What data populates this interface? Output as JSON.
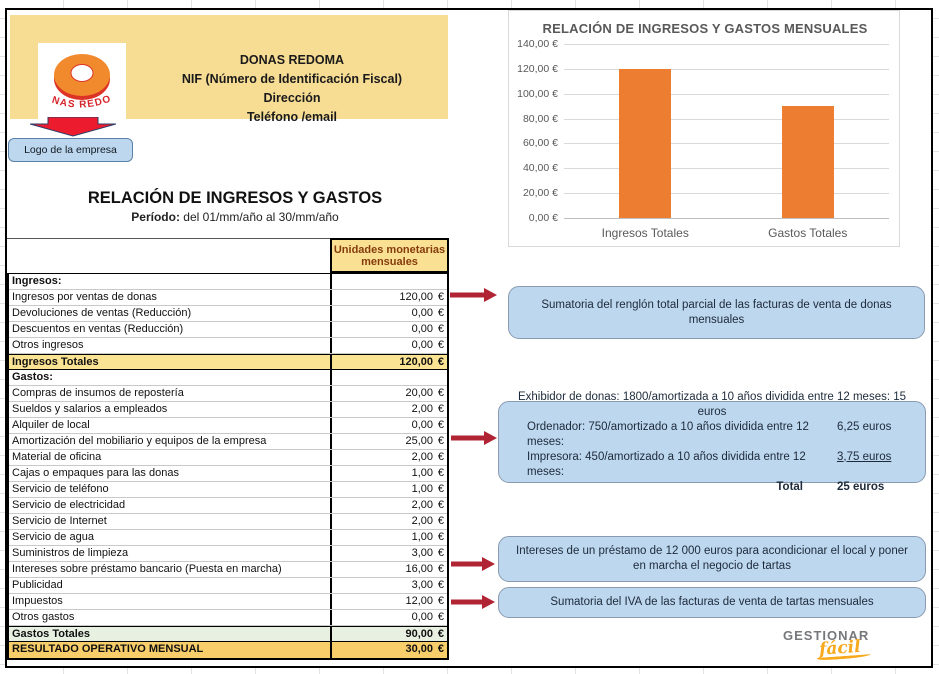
{
  "company": {
    "name": "DONAS REDOMA",
    "nif": "NIF (Número de Identificación Fiscal)",
    "address": "Dirección",
    "contact": "Teléfono /email"
  },
  "logo": {
    "brand": "DONAS REDOMA",
    "caption": "Logo de la empresa"
  },
  "statement": {
    "title": "RELACIÓN DE INGRESOS Y GASTOS",
    "period_label": "Período:",
    "period_value": "del  01/mm/año  al  30/mm/año"
  },
  "table": {
    "value_header": "Unidades monetarias mensuales",
    "currency": "€",
    "rows": [
      {
        "label": "Ingresos:",
        "value": "",
        "type": "section"
      },
      {
        "label": "Ingresos por ventas de donas",
        "value": "120,00",
        "type": "item"
      },
      {
        "label": "Devoluciones de ventas (Reducción)",
        "value": "0,00",
        "type": "item"
      },
      {
        "label": "Descuentos en ventas (Reducción)",
        "value": "0,00",
        "type": "item"
      },
      {
        "label": "Otros ingresos",
        "value": "0,00",
        "type": "item"
      },
      {
        "label": "Ingresos Totales",
        "value": "120,00",
        "type": "total-yellow"
      },
      {
        "label": "Gastos:",
        "value": "",
        "type": "section"
      },
      {
        "label": "Compras de insumos de repostería",
        "value": "20,00",
        "type": "item"
      },
      {
        "label": "Sueldos y salarios a empleados",
        "value": "2,00",
        "type": "item"
      },
      {
        "label": "Alquiler de local",
        "value": "0,00",
        "type": "item"
      },
      {
        "label": "Amortización del mobiliario y equipos de la empresa",
        "value": "25,00",
        "type": "item"
      },
      {
        "label": "Material de oficina",
        "value": "2,00",
        "type": "item"
      },
      {
        "label": "Cajas o empaques para las donas",
        "value": "1,00",
        "type": "item"
      },
      {
        "label": "Servicio de teléfono",
        "value": "1,00",
        "type": "item"
      },
      {
        "label": "Servicio de electricidad",
        "value": "2,00",
        "type": "item"
      },
      {
        "label": "Servicio de Internet",
        "value": "2,00",
        "type": "item"
      },
      {
        "label": "Servicio de agua",
        "value": "1,00",
        "type": "item"
      },
      {
        "label": "Suministros de limpieza",
        "value": "3,00",
        "type": "item"
      },
      {
        "label": "Intereses sobre préstamo bancario (Puesta en marcha)",
        "value": "16,00",
        "type": "item"
      },
      {
        "label": "Publicidad",
        "value": "3,00",
        "type": "item"
      },
      {
        "label": "Impuestos",
        "value": "12,00",
        "type": "item"
      },
      {
        "label": "Otros gastos",
        "value": "0,00",
        "type": "item"
      },
      {
        "label": "Gastos Totales",
        "value": "90,00",
        "type": "total-green"
      },
      {
        "label": "RESULTADO OPERATIVO MENSUAL",
        "value": "30,00",
        "type": "result"
      }
    ]
  },
  "chart_data": {
    "type": "bar",
    "title": "RELACIÓN DE INGRESOS Y GASTOS MENSUALES",
    "categories": [
      "Ingresos Totales",
      "Gastos Totales"
    ],
    "values": [
      120,
      90
    ],
    "ylim": [
      0,
      140
    ],
    "ytick_step": 20,
    "ytick_labels": [
      "0,00 €",
      "20,00 €",
      "40,00 €",
      "60,00 €",
      "80,00 €",
      "100,00 €",
      "120,00 €",
      "140,00 €"
    ],
    "grid": true,
    "legend": false,
    "bar_color": "#ED7D31"
  },
  "callouts": [
    {
      "text": "Sumatoria del renglón total parcial de las facturas de venta de donas mensuales"
    },
    {
      "lines": [
        {
          "text": "Exhibidor de donas: 1800/amortizada a 10 años dividida entre 12 meses: 15 euros"
        },
        {
          "text": "Ordenador: 750/amortizado a 10 años dividida entre 12 meses:",
          "value": "6,25 euros"
        },
        {
          "text": "Impresora: 450/amortizado a 10 años dividida entre 12 meses:",
          "value": "3,75 euros",
          "underline": true
        },
        {
          "text": "Total",
          "value": "25 euros",
          "total": true
        }
      ]
    },
    {
      "text": "Intereses de un préstamo de 12 000 euros para acondicionar el local y poner en marcha el negocio de tartas"
    },
    {
      "text": "Sumatoria del IVA de las facturas de venta de tartas mensuales"
    }
  ],
  "footer_logo": {
    "line1": "GESTIONAR",
    "line2": "fácil"
  },
  "colors": {
    "header_fill": "#F7DC94",
    "value_header_fill": "#FAE093",
    "value_header_text": "#843C0C",
    "total_yellow": "#FBE394",
    "total_green": "#E7F0E1",
    "result_gold": "#F8CE6A",
    "callout_fill": "#BDD7EE",
    "arrow_red": "#B12433",
    "big_arrow_red": "#EC1C2E",
    "bar_orange": "#ED7D31"
  }
}
